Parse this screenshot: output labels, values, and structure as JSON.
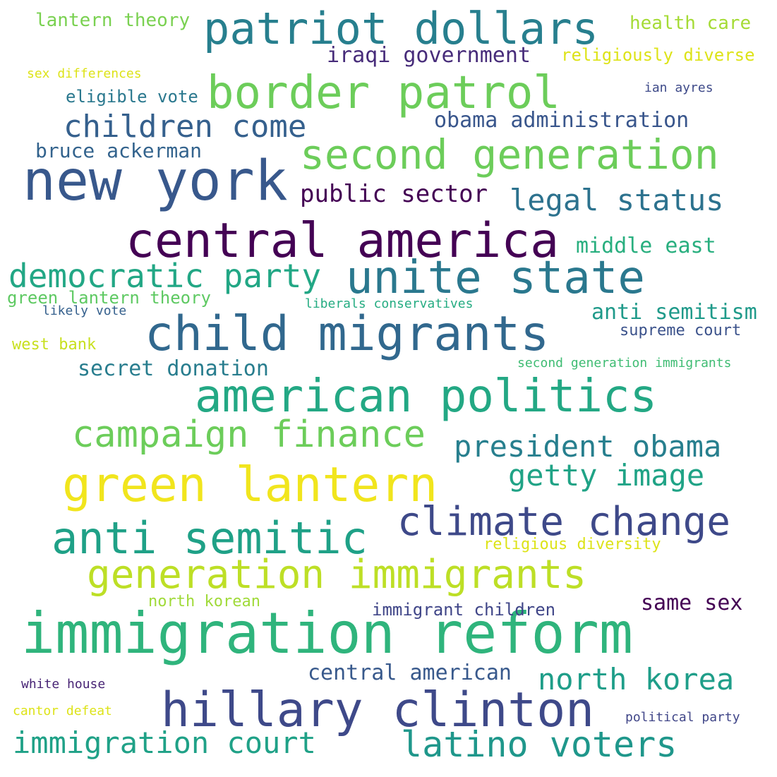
{
  "words": [
    {
      "text": "immigration reform",
      "color": "#2fb47c"
    },
    {
      "text": "hillary clinton",
      "color": "#3e4989"
    },
    {
      "text": "child migrants",
      "color": "#31688e"
    },
    {
      "text": "central america",
      "color": "#440154"
    },
    {
      "text": "new york",
      "color": "#38588c"
    },
    {
      "text": "green lantern",
      "color": "#f1e51d"
    },
    {
      "text": "american politics",
      "color": "#23a884"
    },
    {
      "text": "unite state",
      "color": "#2a788e"
    },
    {
      "text": "border patrol",
      "color": "#6ccd5a"
    },
    {
      "text": "patriot dollars",
      "color": "#277f8e"
    },
    {
      "text": "second generation",
      "color": "#6ccd5a"
    },
    {
      "text": "anti semitic",
      "color": "#1fa187"
    },
    {
      "text": "climate change",
      "color": "#3e4989"
    },
    {
      "text": "generation immigrants",
      "color": "#bddf26"
    },
    {
      "text": "latino voters",
      "color": "#1f978b"
    },
    {
      "text": "campaign finance",
      "color": "#6ccd5a"
    },
    {
      "text": "immigration court",
      "color": "#1fa187"
    },
    {
      "text": "democratic party",
      "color": "#22a785"
    },
    {
      "text": "president obama",
      "color": "#277f8e"
    },
    {
      "text": "children come",
      "color": "#35608d"
    },
    {
      "text": "legal status",
      "color": "#2c728e"
    },
    {
      "text": "getty image",
      "color": "#20a386"
    },
    {
      "text": "north korea",
      "color": "#1f9e89"
    },
    {
      "text": "public sector",
      "color": "#440154"
    },
    {
      "text": "iraqi government",
      "color": "#472c7a"
    },
    {
      "text": "obama administration",
      "color": "#39568c"
    },
    {
      "text": "central american",
      "color": "#38598c"
    },
    {
      "text": "middle east",
      "color": "#29af7f"
    },
    {
      "text": "anti semitism",
      "color": "#1f9a8a"
    },
    {
      "text": "secret donation",
      "color": "#287d8e"
    },
    {
      "text": "same sex",
      "color": "#440154"
    },
    {
      "text": "bruce ackerman",
      "color": "#33638d"
    },
    {
      "text": "lantern theory",
      "color": "#7ad151"
    },
    {
      "text": "health care",
      "color": "#a5db36"
    },
    {
      "text": "religiously diverse",
      "color": "#dde318"
    },
    {
      "text": "green lantern theory",
      "color": "#5ec962"
    },
    {
      "text": "eligible vote",
      "color": "#2a788e"
    },
    {
      "text": "immigrant children",
      "color": "#404688"
    },
    {
      "text": "north korean",
      "color": "#a0da39"
    },
    {
      "text": "religious diversity",
      "color": "#dde318"
    },
    {
      "text": "supreme court",
      "color": "#3b528b"
    },
    {
      "text": "west bank",
      "color": "#c8e020"
    },
    {
      "text": "sex differences",
      "color": "#dde318"
    },
    {
      "text": "ian ayres",
      "color": "#3e4a89"
    },
    {
      "text": "likely vote",
      "color": "#35608d"
    },
    {
      "text": "liberals conservatives",
      "color": "#25ac82"
    },
    {
      "text": "second generation immigrants",
      "color": "#3fbc73"
    },
    {
      "text": "white house",
      "color": "#482475"
    },
    {
      "text": "cantor defeat",
      "color": "#dde318"
    },
    {
      "text": "political party",
      "color": "#404688"
    }
  ]
}
